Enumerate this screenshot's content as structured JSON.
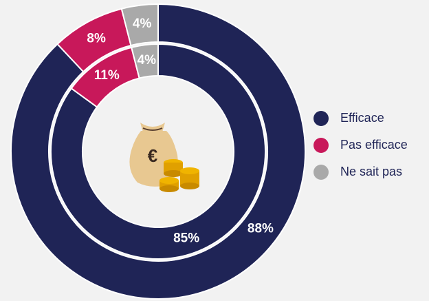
{
  "chart_data": {
    "type": "donut",
    "categories": [
      "Efficace",
      "Pas efficace",
      "Ne sait pas"
    ],
    "colors": [
      "#1f2456",
      "#c8185a",
      "#a9a9a9"
    ],
    "series": [
      {
        "values": [
          88,
          8,
          4
        ],
        "value_labels": [
          "88%",
          "8%",
          "4%"
        ]
      },
      {
        "values": [
          85,
          11,
          4
        ],
        "value_labels": [
          "85%",
          "11%",
          "4%"
        ]
      }
    ]
  }
}
